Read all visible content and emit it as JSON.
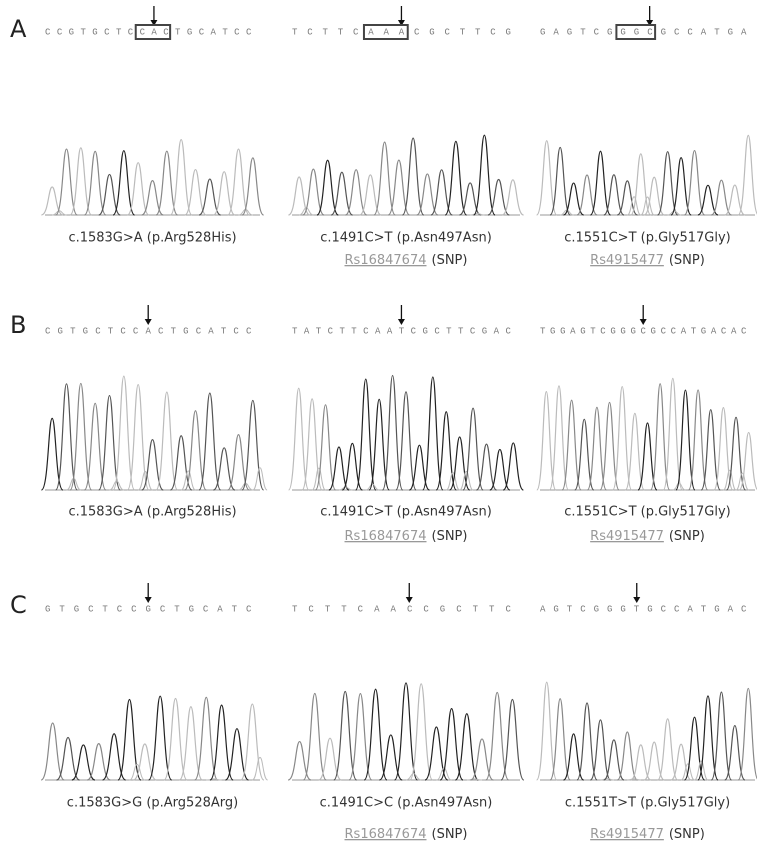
{
  "panels": [
    {
      "label": "A",
      "items": [
        {
          "sequence": "CCGTGCTCCACTGCATCC",
          "mutation": "c.1583G>A (p.Arg528His)"
        },
        {
          "sequence": "TCTTCAAACGCTTCG",
          "mutation": "c.1491C>T (p.Asn497Asn)",
          "rs": "Rs16847674",
          "snp": "(SNP)"
        },
        {
          "sequence": "GAGTCGGGCGCCATGA",
          "mutation": "c.1551C>T (p.Gly517Gly)",
          "rs": "Rs4915477",
          "snp": "(SNP)"
        }
      ]
    },
    {
      "label": "B",
      "items": [
        {
          "sequence": "CGTGCTCCACTGCATCC",
          "mutation": "c.1583G>A (p.Arg528His)"
        },
        {
          "sequence": "TATCTTCAATCGCTTCGAC",
          "mutation": "c.1491C>T (p.Asn497Asn)",
          "rs": "Rs16847674",
          "snp": "(SNP)"
        },
        {
          "sequence": "TGGAGTCGGGCGCCATGACAC",
          "mutation": "c.1551C>T (p.Gly517Gly)",
          "rs": "Rs4915477",
          "snp": "(SNP)"
        }
      ]
    },
    {
      "label": "C",
      "items": [
        {
          "sequence": "GTGCTCCGCTGCATC",
          "mutation": "c.1583G>G (p.Arg528Arg)"
        },
        {
          "sequence": "TCTTCAACCGCTTC",
          "mutation": "c.1491C>C (p.Asn497Asn)",
          "rs": "Rs16847674",
          "snp": "(SNP)"
        },
        {
          "sequence": "AGTCGGGTGCCATGAC",
          "mutation": "c.1551T>T (p.Gly517Gly)",
          "rs": "Rs4915477",
          "snp": "(SNP)"
        }
      ]
    }
  ]
}
